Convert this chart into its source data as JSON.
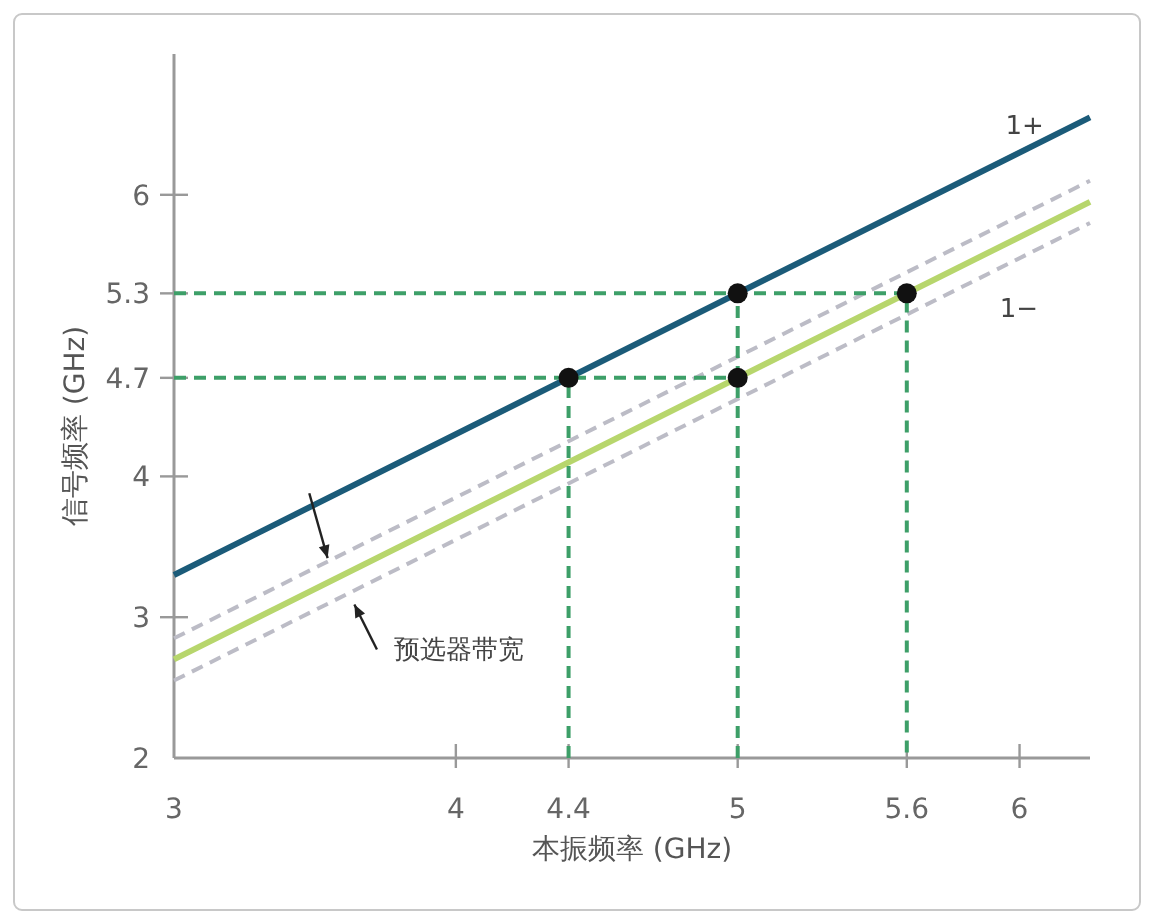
{
  "chart_data": {
    "type": "line",
    "xlabel": "本振频率 (GHz)",
    "ylabel": "信号频率 (GHz)",
    "xlim": [
      3,
      6.25
    ],
    "ylim": [
      2,
      7
    ],
    "xticks": [
      3,
      4,
      4.4,
      5,
      5.6,
      6
    ],
    "yticks": [
      2,
      3,
      4,
      4.7,
      5.3,
      6
    ],
    "grid": false,
    "line_style": "solid",
    "marker": "none",
    "series": [
      {
        "color": "#1b5b79",
        "x": [
          3,
          6.25
        ],
        "values": [
          3.3,
          6.55
        ]
      },
      {
        "color": "#b7d66c",
        "x": [
          3,
          6.25
        ],
        "values": [
          2.7,
          5.95
        ]
      },
      {
        "color": "#bcbcc6",
        "line_style": "dashed",
        "x": [
          3,
          6.25
        ],
        "values": [
          2.85,
          6.1
        ]
      },
      {
        "color": "#bcbcc6",
        "line_style": "dashed",
        "x": [
          3,
          6.25
        ],
        "values": [
          2.55,
          5.8
        ]
      },
      {
        "color": "#3d9f68",
        "line_style": "dashed",
        "x": [
          3,
          5.6,
          5.6,
          null,
          3,
          5,
          null,
          5,
          5,
          null,
          4.4,
          4.4
        ],
        "values": [
          5.3,
          5.3,
          2,
          null,
          4.7,
          4.7,
          null,
          2,
          5.3,
          null,
          2,
          4.7
        ]
      },
      {
        "type": "scatter",
        "marker": "circle",
        "color": "#111111",
        "x": [
          4.4,
          5,
          5,
          5.6
        ],
        "values": [
          4.7,
          5.3,
          4.7,
          5.3
        ]
      }
    ],
    "annotations": [
      "1+",
      "1−",
      "预选器带宽"
    ]
  }
}
